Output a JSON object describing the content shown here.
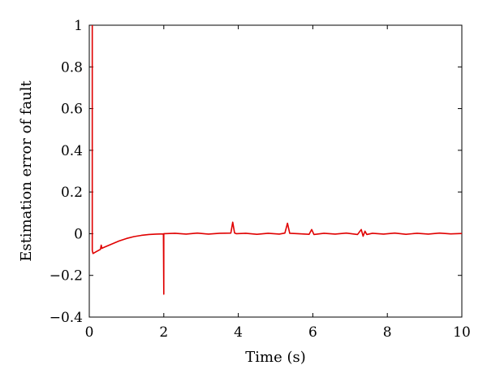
{
  "chart_data": {
    "type": "line",
    "xlabel": "Time (s)",
    "ylabel": "Estimation error of fault",
    "xlim": [
      0,
      10
    ],
    "ylim": [
      -0.4,
      1
    ],
    "xticks": [
      0,
      2,
      4,
      6,
      8,
      10
    ],
    "xtick_labels": [
      "0",
      "2",
      "4",
      "6",
      "8",
      "10"
    ],
    "yticks": [
      -0.4,
      -0.2,
      0,
      0.2,
      0.4,
      0.6,
      0.8,
      1
    ],
    "ytick_labels": [
      "−0.4",
      "−0.2",
      "0",
      "0.2",
      "0.4",
      "0.6",
      "0.8",
      "1"
    ],
    "grid": false,
    "series": [
      {
        "color": "#e00000",
        "x": [
          0.08,
          0.08,
          0.1,
          0.2,
          0.3,
          0.32,
          0.34,
          0.4,
          0.6,
          0.8,
          1.0,
          1.2,
          1.4,
          1.6,
          1.8,
          1.99,
          2.0,
          2.0,
          2.01,
          2.3,
          2.6,
          2.9,
          3.2,
          3.5,
          3.8,
          3.85,
          3.9,
          3.95,
          4.2,
          4.5,
          4.8,
          5.1,
          5.25,
          5.32,
          5.38,
          5.6,
          5.9,
          5.97,
          6.03,
          6.3,
          6.6,
          6.9,
          7.2,
          7.3,
          7.35,
          7.4,
          7.45,
          7.6,
          7.9,
          8.2,
          8.5,
          8.8,
          9.1,
          9.4,
          9.7,
          10.0
        ],
        "y": [
          1.0,
          -0.08,
          -0.095,
          -0.085,
          -0.075,
          -0.055,
          -0.07,
          -0.065,
          -0.05,
          -0.035,
          -0.023,
          -0.014,
          -0.008,
          -0.004,
          -0.002,
          -0.001,
          -0.29,
          0.0,
          0.0,
          0.002,
          -0.002,
          0.003,
          -0.002,
          0.002,
          0.003,
          0.055,
          0.003,
          0.0,
          0.002,
          -0.003,
          0.002,
          -0.002,
          0.003,
          0.05,
          0.002,
          0.0,
          -0.003,
          0.02,
          -0.004,
          0.002,
          -0.002,
          0.003,
          -0.004,
          0.02,
          -0.012,
          0.012,
          -0.004,
          0.002,
          -0.002,
          0.003,
          -0.003,
          0.002,
          -0.002,
          0.003,
          -0.001,
          0.001
        ]
      }
    ]
  }
}
